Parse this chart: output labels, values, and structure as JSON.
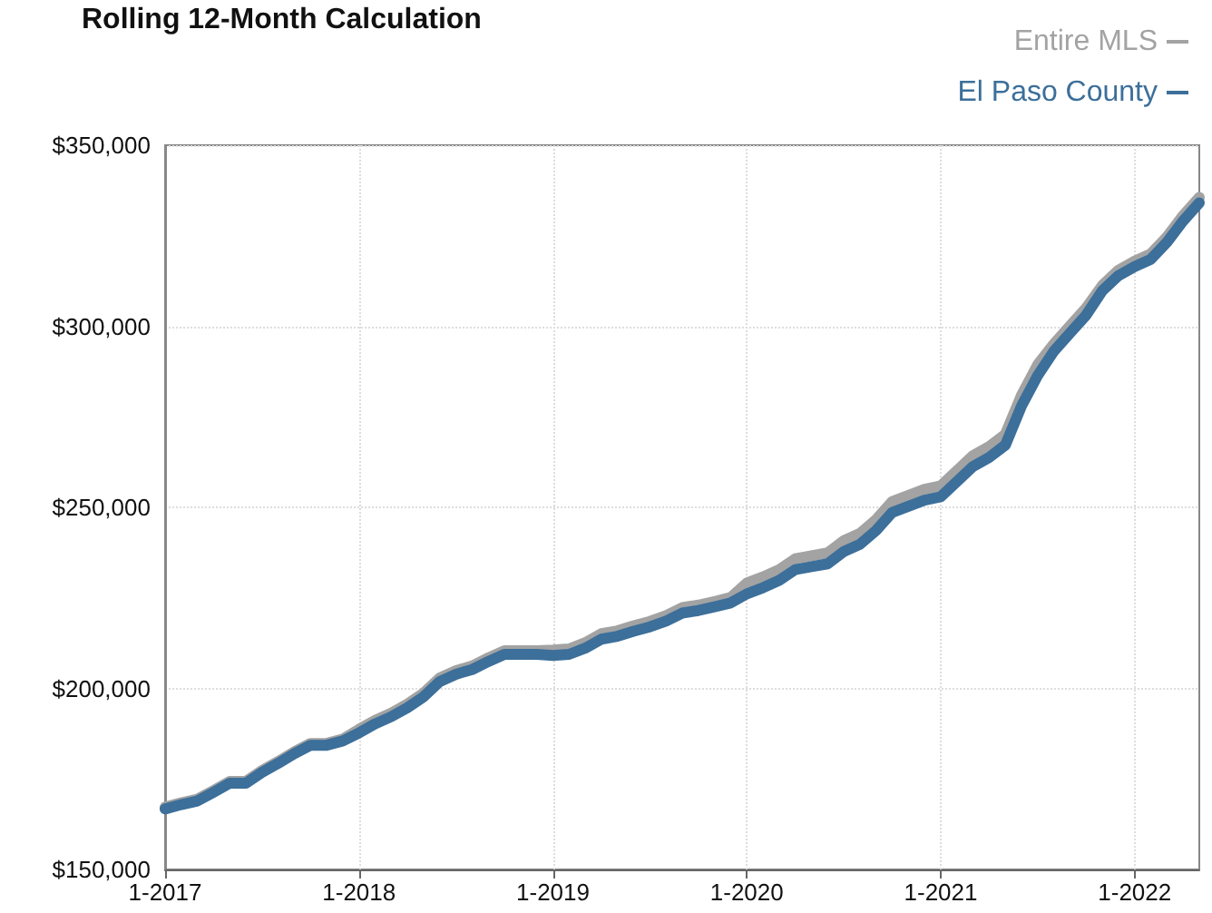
{
  "chart_data": {
    "type": "line",
    "title": "Rolling 12-Month Calculation",
    "categories": [
      "1-2017",
      null,
      null,
      null,
      null,
      null,
      null,
      null,
      null,
      null,
      null,
      null,
      "1-2018",
      null,
      null,
      null,
      null,
      null,
      null,
      null,
      null,
      null,
      null,
      null,
      "1-2019",
      null,
      null,
      null,
      null,
      null,
      null,
      null,
      null,
      null,
      null,
      null,
      "1-2020",
      null,
      null,
      null,
      null,
      null,
      null,
      null,
      null,
      null,
      null,
      null,
      "1-2021",
      null,
      null,
      null,
      null,
      null,
      null,
      null,
      null,
      null,
      null,
      null,
      "1-2022",
      null,
      null,
      null,
      null
    ],
    "series": [
      {
        "name": "Entire MLS",
        "color": "#a3a3a3",
        "values": [
          167200,
          168400,
          169400,
          171800,
          174300,
          174300,
          177300,
          179800,
          182500,
          184800,
          184800,
          186000,
          188700,
          191200,
          193200,
          195700,
          198700,
          202900,
          204900,
          206200,
          208400,
          210400,
          210400,
          210400,
          210600,
          210900,
          212600,
          215100,
          215900,
          217300,
          218500,
          220100,
          222300,
          223000,
          224000,
          225100,
          229100,
          230800,
          232800,
          235800,
          236600,
          237400,
          240800,
          242800,
          246600,
          251600,
          253300,
          255000,
          255900,
          260100,
          264300,
          266800,
          270200,
          281000,
          289400,
          295100,
          300100,
          305100,
          311300,
          315500,
          318000,
          320000,
          324700,
          330600,
          335600
        ]
      },
      {
        "name": "El Paso County",
        "color": "#3c6f9a",
        "values": [
          166700,
          167900,
          168900,
          171300,
          173800,
          173800,
          176800,
          179300,
          182000,
          184300,
          184300,
          185500,
          187700,
          190200,
          192200,
          194700,
          197700,
          201900,
          203900,
          205200,
          207400,
          209400,
          209400,
          209400,
          209100,
          209400,
          211100,
          213600,
          214400,
          215800,
          217000,
          218600,
          220800,
          221500,
          222500,
          223600,
          226100,
          227800,
          229800,
          232800,
          233600,
          234400,
          237800,
          239800,
          243600,
          248600,
          250300,
          252000,
          252900,
          257100,
          261300,
          263800,
          267200,
          278000,
          286400,
          293100,
          298100,
          303100,
          309800,
          314000,
          316500,
          318500,
          323200,
          329100,
          334100
        ]
      }
    ],
    "ylim": [
      150000,
      350000
    ],
    "yticks": [
      {
        "value": 150000,
        "label": "$150,000"
      },
      {
        "value": 200000,
        "label": "$200,000"
      },
      {
        "value": 250000,
        "label": "$250,000"
      },
      {
        "value": 300000,
        "label": "$300,000"
      },
      {
        "value": 350000,
        "label": "$350,000"
      }
    ],
    "grid": true,
    "legend": "top right",
    "marker": "none",
    "line_style": "solid"
  }
}
